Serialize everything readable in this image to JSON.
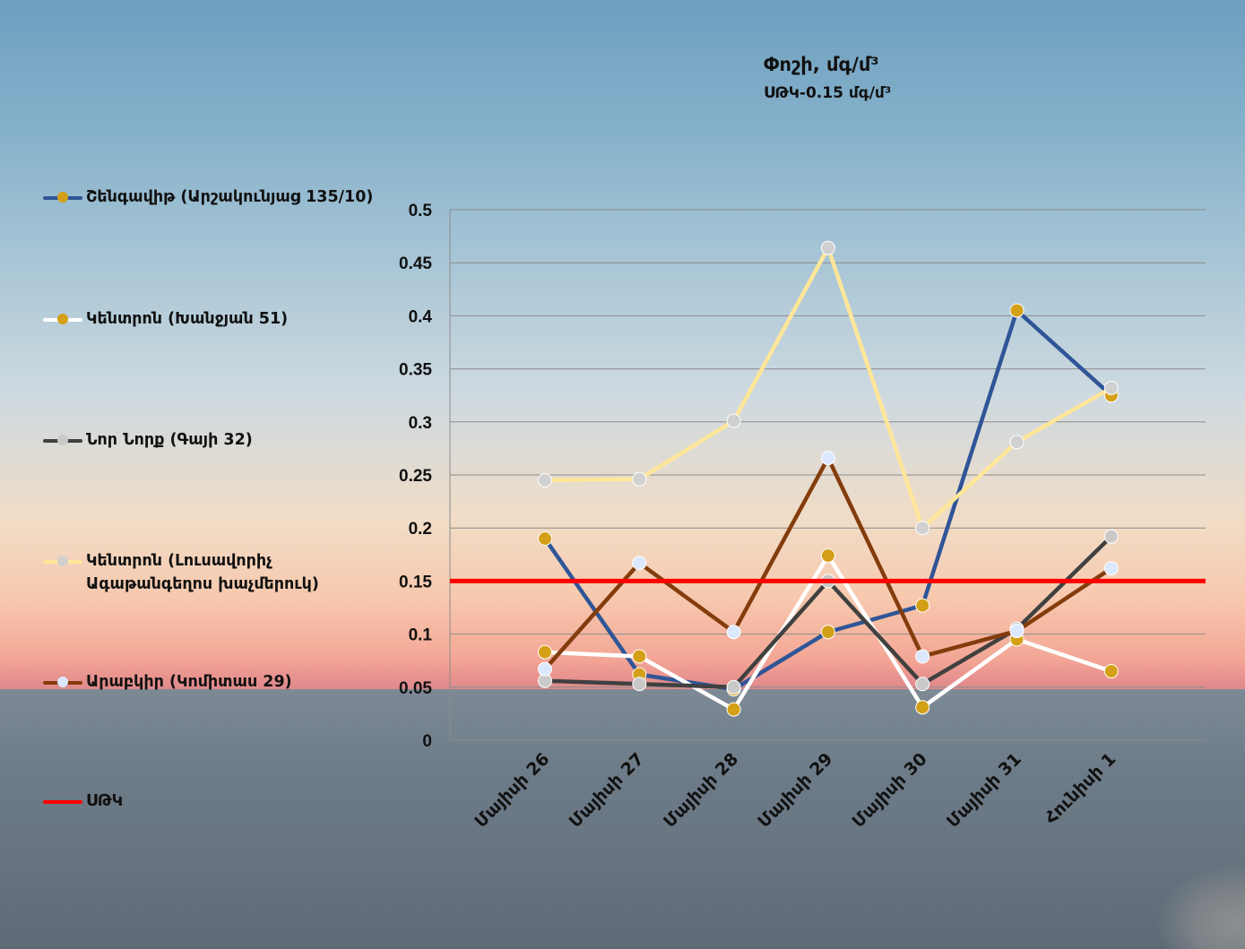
{
  "chart_data": {
    "type": "line",
    "title": "Փոշի, մգ/մ³",
    "subtitle": "ՍԹԿ-0.15 մգ/մ³",
    "categories": [
      "Մայիսի 26",
      "Մայիսի 27",
      "Մայիսի 28",
      "Մայիսի 29",
      "Մայիսի 30",
      "Մայիսի 31",
      "Հունիսի 1"
    ],
    "ylim": [
      0,
      0.5
    ],
    "yticks": [
      "0",
      "0.05",
      "0.1",
      "0.15",
      "0.2",
      "0.25",
      "0.3",
      "0.35",
      "0.4",
      "0.45",
      "0.5"
    ],
    "grid": true,
    "legend_position": "left",
    "series": [
      {
        "name": "Շենգավիթ (Արշակունյաց 135/10)",
        "color": "#2f5597",
        "marker": "#d4a017",
        "values": [
          0.19,
          0.062,
          0.048,
          0.102,
          0.127,
          0.405,
          0.325
        ]
      },
      {
        "name": "Կենտրոն (Խանջյան 51)",
        "color": "#ffffff",
        "marker": "#d4a017",
        "values": [
          0.083,
          0.079,
          0.029,
          0.174,
          0.031,
          0.095,
          0.065
        ]
      },
      {
        "name": "Նոր Նորք (Գայի 32)",
        "color": "#404040",
        "marker": "#c9c9c9",
        "values": [
          0.056,
          0.053,
          0.05,
          0.15,
          0.053,
          0.105,
          0.192
        ]
      },
      {
        "name": "Կենտրոն (Լուսավորիչ Ագաթանգեղոս խաչմերուկ)",
        "color": "#ffe699",
        "marker": "#d0d0d0",
        "values": [
          0.245,
          0.246,
          0.301,
          0.464,
          0.2,
          0.281,
          0.332
        ]
      },
      {
        "name": "Արաբկիր (Կոմիտաս 29)",
        "color": "#843c0c",
        "marker": "#dbe8ff",
        "values": [
          0.067,
          0.167,
          0.102,
          0.266,
          0.079,
          0.103,
          0.162
        ]
      }
    ],
    "threshold": {
      "name": "ՍԹԿ",
      "value": 0.15,
      "color": "#ff0000"
    }
  }
}
